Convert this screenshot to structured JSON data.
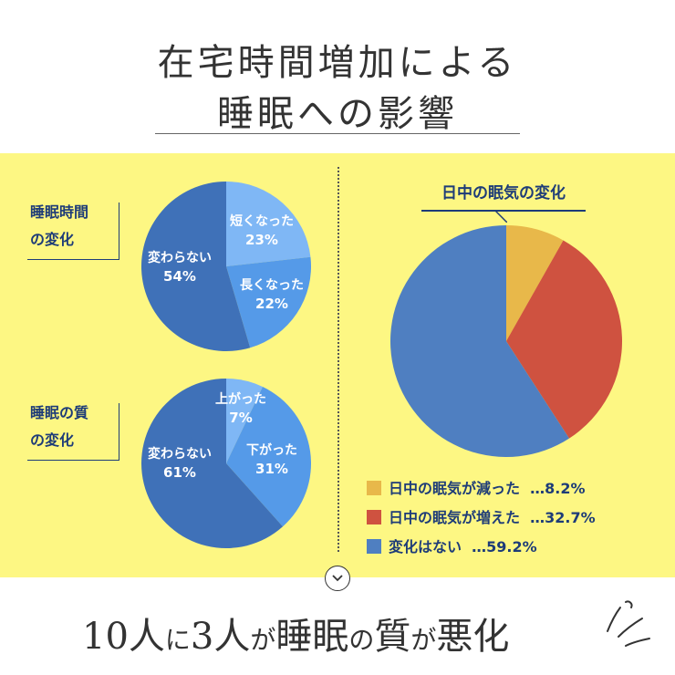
{
  "header": {
    "title_line1": "在宅時間増加による",
    "title_line2": "睡眠への影響"
  },
  "chart_data": [
    {
      "type": "pie",
      "title": "睡眠時間の変化",
      "title_line1": "睡眠時間",
      "title_line2": "の変化",
      "slices": [
        {
          "name": "短くなった",
          "value": 23,
          "label": "23%",
          "color": "#7fb7f5"
        },
        {
          "name": "長くなった",
          "value": 22,
          "label": "22%",
          "color": "#559ae8"
        },
        {
          "name": "変わらない",
          "value": 54,
          "label": "54%",
          "color": "#3f71b8"
        }
      ]
    },
    {
      "type": "pie",
      "title": "睡眠の質の変化",
      "title_line1": "睡眠の質",
      "title_line2": "の変化",
      "slices": [
        {
          "name": "上がった",
          "value": 7,
          "label": "7%",
          "color": "#7fb7f5"
        },
        {
          "name": "下がった",
          "value": 31,
          "label": "31%",
          "color": "#559ae8"
        },
        {
          "name": "変わらない",
          "value": 61,
          "label": "61%",
          "color": "#3f71b8"
        }
      ]
    },
    {
      "type": "pie",
      "title": "日中の眠気の変化",
      "legend_position": "bottom",
      "slices": [
        {
          "name": "日中の眠気が減った",
          "value": 8.2,
          "label": "…8.2%",
          "color": "#e8b84a"
        },
        {
          "name": "日中の眠気が増えた",
          "value": 32.7,
          "label": "…32.7%",
          "color": "#cf5240"
        },
        {
          "name": "変化はない",
          "value": 59.2,
          "label": "…59.2%",
          "color": "#4f7fc1"
        }
      ]
    }
  ],
  "conclusion": {
    "part1": "10人",
    "part2": "に",
    "part3": "3人",
    "part4": "が",
    "part5": "睡眠",
    "part6": "の",
    "part7": "質",
    "part8": "が",
    "part9": "悪化"
  },
  "icons": {
    "scroll": "chevron-down-icon",
    "emphasis": "exclamation-lines-icon"
  }
}
